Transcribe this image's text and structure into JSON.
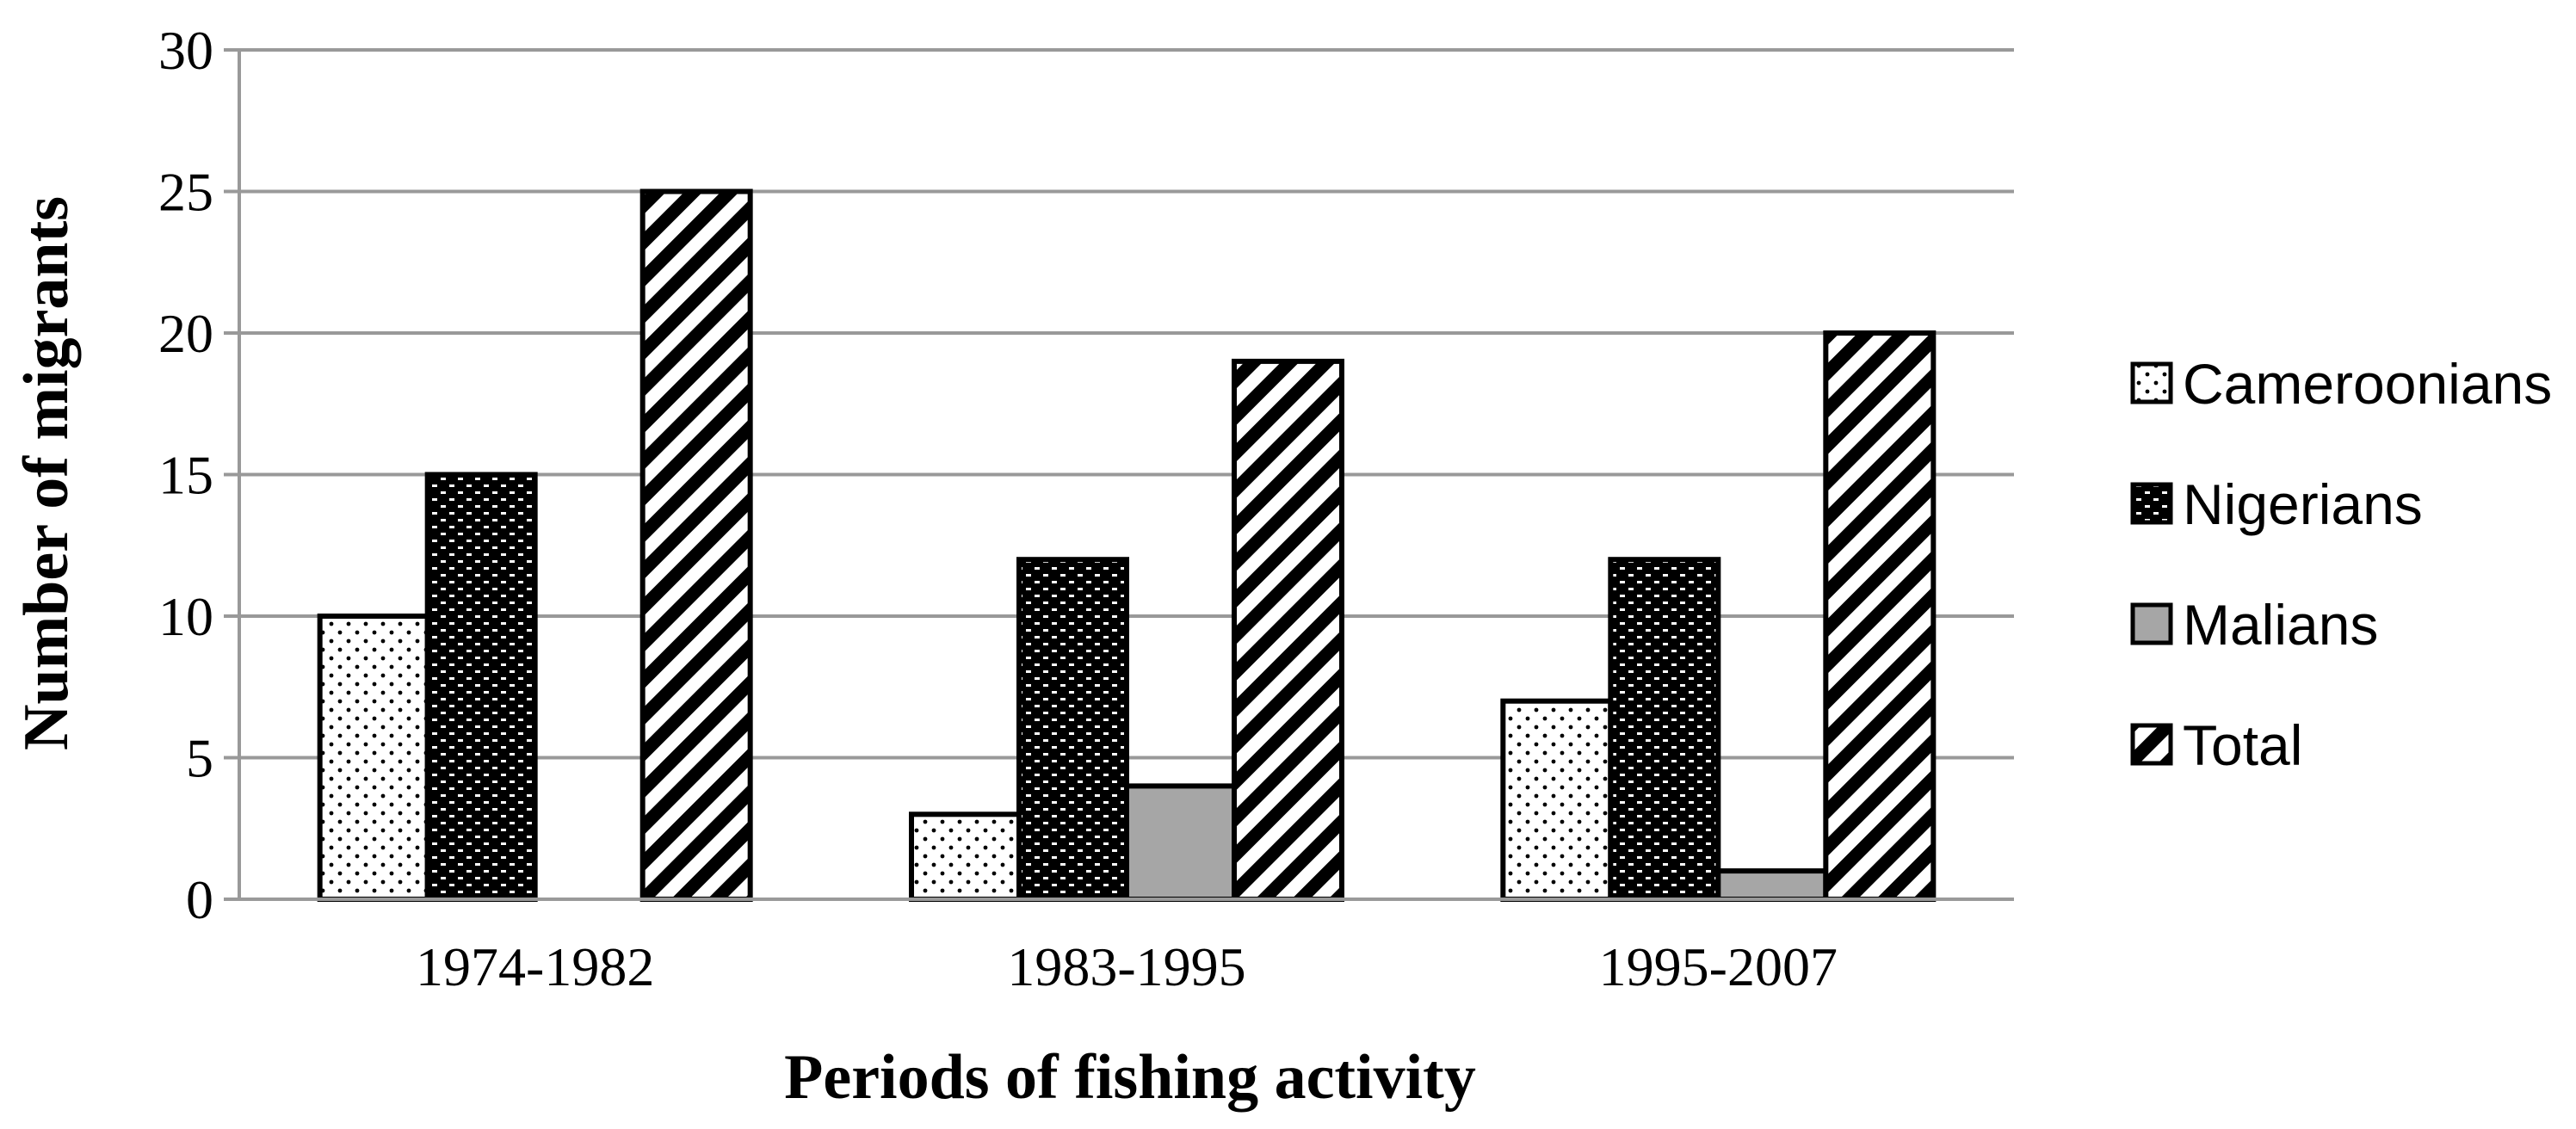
{
  "chart_data": {
    "type": "bar",
    "title": "",
    "xlabel": "Periods of fishing activity",
    "ylabel": "Number of migrants",
    "categories": [
      "1974-1982",
      "1983-1995",
      "1995-2007"
    ],
    "series": [
      {
        "name": "Cameroonians",
        "values": [
          10,
          3,
          7
        ],
        "pattern": "dots"
      },
      {
        "name": "Nigerians",
        "values": [
          15,
          12,
          12
        ],
        "pattern": "dark-dashes"
      },
      {
        "name": "Malians",
        "values": [
          0,
          4,
          1
        ],
        "pattern": "solid-gray"
      },
      {
        "name": "Total",
        "values": [
          25,
          19,
          20
        ],
        "pattern": "diagonal-stripes"
      }
    ],
    "ylim": [
      0,
      30
    ],
    "yticks": [
      "0",
      "5",
      "10",
      "15",
      "20",
      "25",
      "30"
    ],
    "grid": true,
    "legend": "right",
    "colors": {
      "gridline": "#999999",
      "malians_fill": "#a6a6a6",
      "bar_outline": "#000000"
    }
  }
}
